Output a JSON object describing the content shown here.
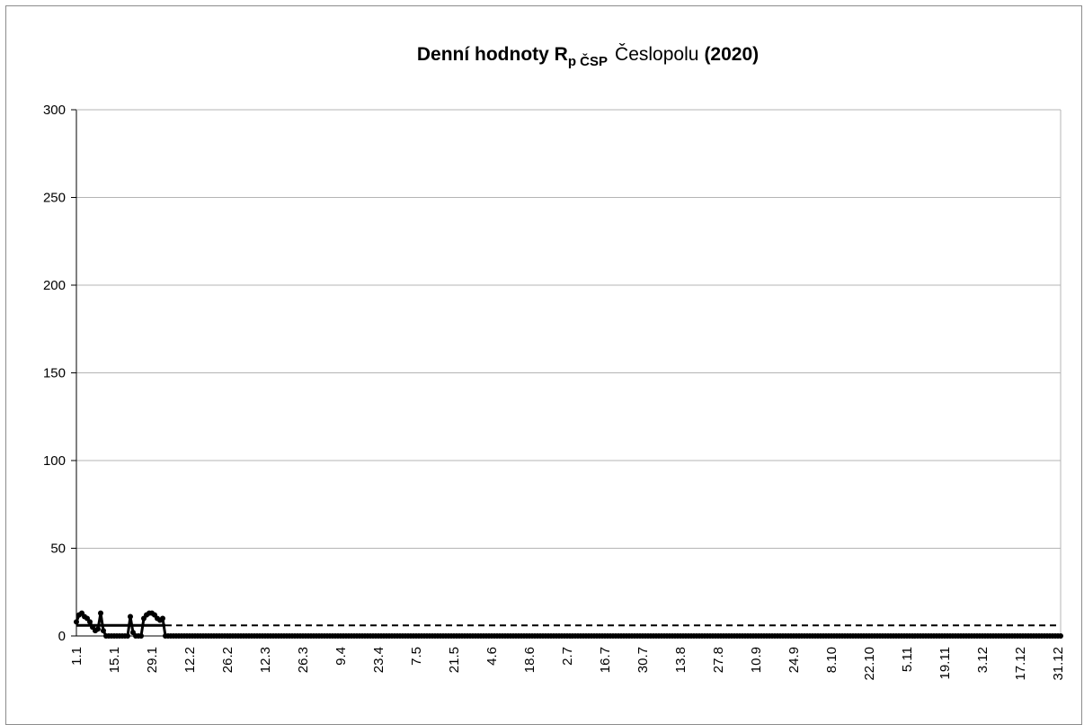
{
  "chart_data": {
    "type": "line",
    "title": {
      "bold_part": "Denní hodnoty R",
      "subscript": "p ČSP",
      "normal_part": "Česlopolu",
      "year_part": "(2020)"
    },
    "xlabel": "",
    "ylabel": "",
    "ylim": [
      0,
      300
    ],
    "yticks": [
      "0",
      "50",
      "100",
      "150",
      "200",
      "250",
      "300"
    ],
    "xticks": [
      "1.1",
      "15.1",
      "29.1",
      "12.2",
      "26.2",
      "12.3",
      "26.3",
      "9.4",
      "23.4",
      "7.5",
      "21.5",
      "4.6",
      "18.6",
      "2.7",
      "16.7",
      "30.7",
      "13.8",
      "27.8",
      "10.9",
      "24.9",
      "8.10",
      "22.10",
      "5.11",
      "19.11",
      "3.12",
      "17.12",
      "31.12"
    ],
    "days_in_year": 366,
    "grid": "horizontal",
    "series": [
      {
        "style": "line-with-markers",
        "nonzero_points": [
          [
            1,
            8
          ],
          [
            2,
            12
          ],
          [
            3,
            13
          ],
          [
            4,
            11
          ],
          [
            5,
            10
          ],
          [
            6,
            8
          ],
          [
            7,
            5
          ],
          [
            8,
            3
          ],
          [
            9,
            4
          ],
          [
            10,
            13
          ],
          [
            11,
            3
          ],
          [
            12,
            0
          ],
          [
            13,
            0
          ],
          [
            14,
            0
          ],
          [
            15,
            0
          ],
          [
            16,
            0
          ],
          [
            17,
            0
          ],
          [
            18,
            0
          ],
          [
            19,
            0
          ],
          [
            20,
            0
          ],
          [
            21,
            11
          ],
          [
            22,
            2
          ],
          [
            23,
            0
          ],
          [
            24,
            0
          ],
          [
            25,
            0
          ],
          [
            26,
            10
          ],
          [
            27,
            12
          ],
          [
            28,
            13
          ],
          [
            29,
            13
          ],
          [
            30,
            12
          ],
          [
            31,
            10
          ],
          [
            32,
            9
          ],
          [
            33,
            10
          ],
          [
            34,
            0
          ]
        ],
        "default_value": 0
      },
      {
        "style": "solid",
        "segments": [
          [
            [
              1,
              6
            ],
            [
              34,
              6
            ]
          ]
        ]
      },
      {
        "style": "dashed",
        "segments": [
          [
            [
              34,
              6
            ],
            [
              366,
              6
            ]
          ]
        ]
      }
    ]
  }
}
